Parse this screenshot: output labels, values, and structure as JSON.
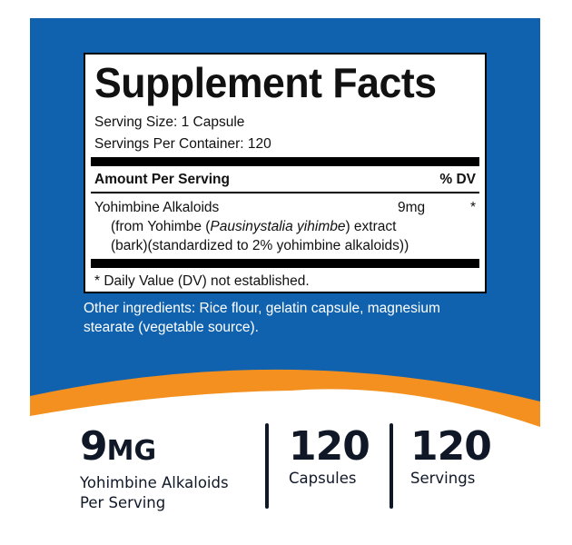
{
  "colors": {
    "blue": "#1062ae",
    "orange": "#f39020",
    "text_dark": "#101828"
  },
  "facts": {
    "title": "Supplement Facts",
    "serving_size": "Serving Size: 1 Capsule",
    "servings_per_container": "Servings Per Container: 120",
    "amount_header": "Amount Per Serving",
    "dv_header": "% DV",
    "ingredient": {
      "name": "Yohimbine Alkaloids",
      "amount": "9mg",
      "dv": "*",
      "detail_1a": "(from Yohimbe (",
      "detail_1_italic": "Pausinystalia yihimbe",
      "detail_1b": ") extract",
      "detail_2": "(bark)(standardized to 2% yohimbine alkaloids))"
    },
    "footnote": "* Daily Value (DV) not established."
  },
  "other_ingredients": "Other ingredients: Rice flour, gelatin capsule, magnesium stearate (vegetable source).",
  "stats": [
    {
      "value": "9",
      "unit": "MG",
      "label_1": "Yohimbine Alkaloids",
      "label_2": "Per Serving"
    },
    {
      "value": "120",
      "label_1": "Capsules"
    },
    {
      "value": "120",
      "label_1": "Servings"
    }
  ]
}
